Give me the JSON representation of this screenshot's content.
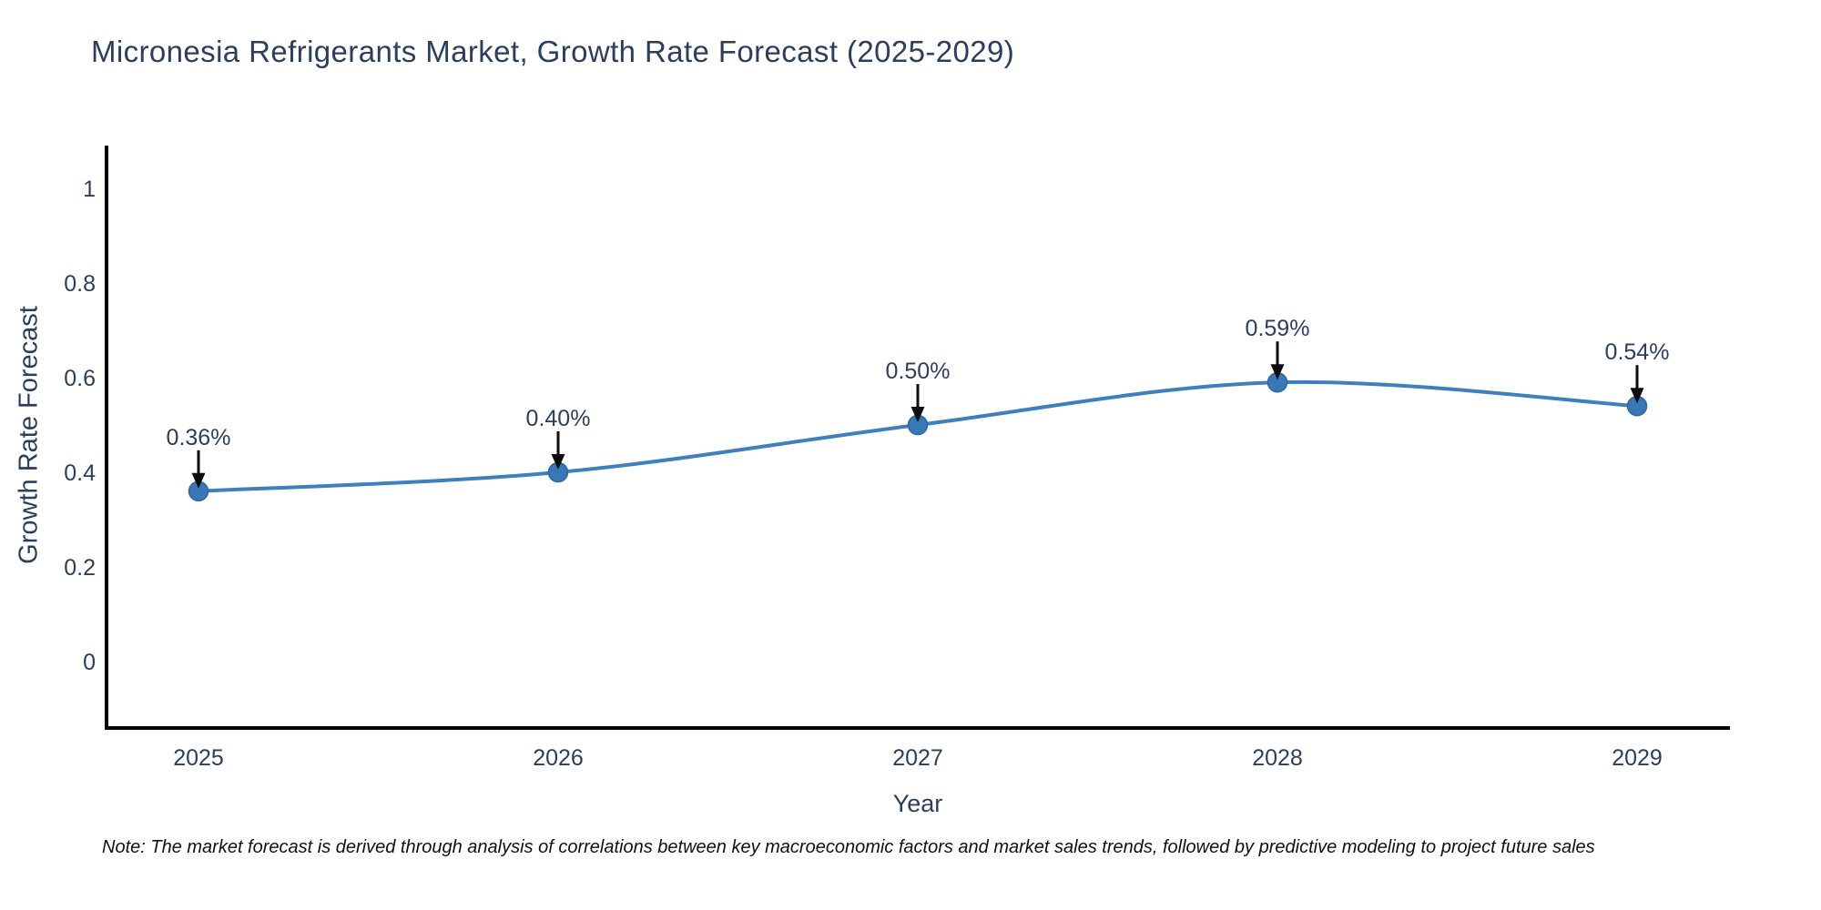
{
  "title": "Micronesia Refrigerants Market, Growth Rate Forecast (2025-2029)",
  "note": "Note: The market forecast is derived through analysis of correlations between key macroeconomic factors and market sales trends, followed by predictive modeling to project future sales",
  "chart_data": {
    "type": "line",
    "title": "Micronesia Refrigerants Market, Growth Rate Forecast (2025-2029)",
    "xlabel": "Year",
    "ylabel": "Growth Rate Forecast",
    "categories": [
      "2025",
      "2026",
      "2027",
      "2028",
      "2029"
    ],
    "values": [
      0.36,
      0.4,
      0.5,
      0.59,
      0.54
    ],
    "point_labels": [
      "0.36%",
      "0.40%",
      "0.50%",
      "0.59%",
      "0.54%"
    ],
    "ytick_values": [
      0,
      0.2,
      0.4,
      0.6,
      0.8,
      1
    ],
    "ytick_labels": [
      "0",
      "0.2",
      "0.4",
      "0.6",
      "0.8",
      "1"
    ],
    "ylim": [
      -0.14,
      1.09
    ],
    "grid": false,
    "legend": "none",
    "line_shape": "spline",
    "colors": {
      "line": "#3f7fbe",
      "marker_fill": "#3878b6",
      "marker_edge": "#2d669e",
      "axis": "#000000",
      "tick_text": "#2a3f5f",
      "annotation_text": "#2a3f5f",
      "annotation_arrow": "#0d0d0d"
    }
  }
}
